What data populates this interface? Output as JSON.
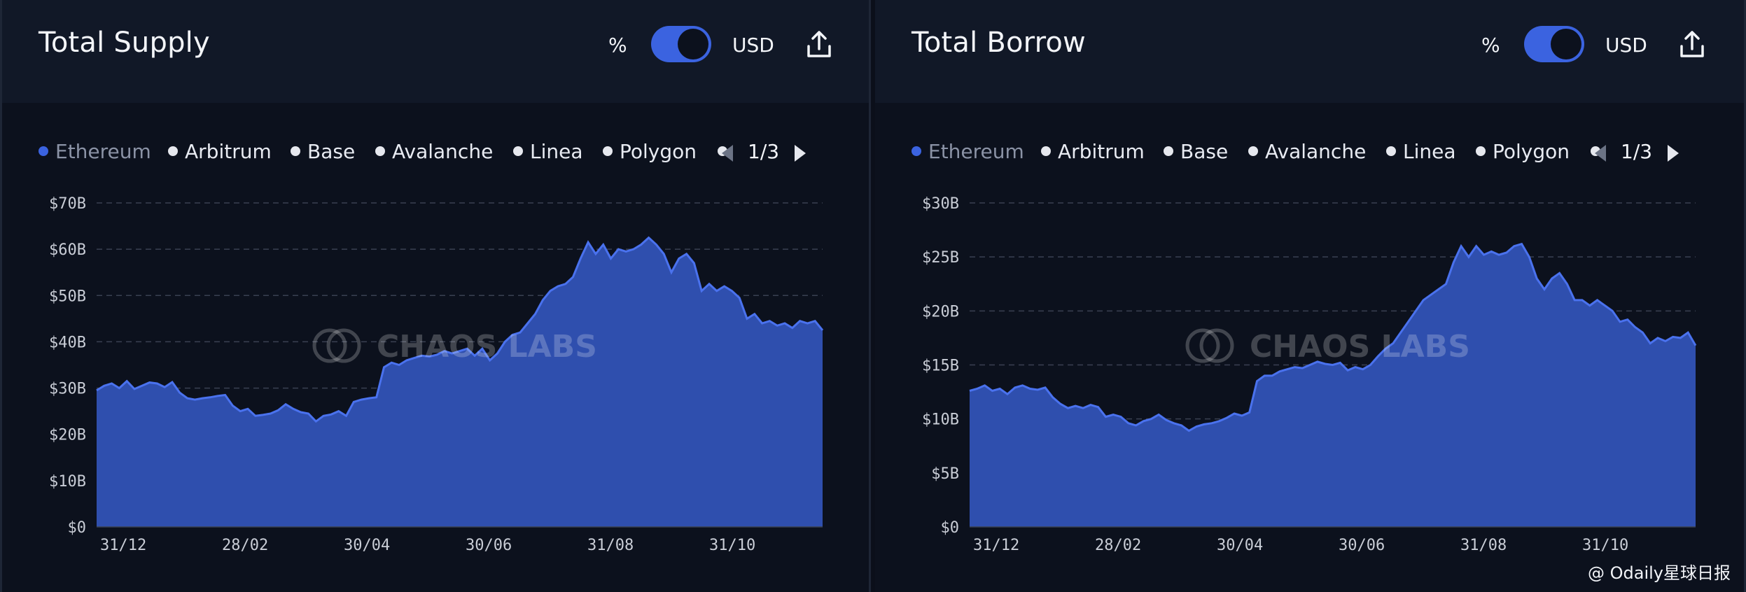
{
  "panels": [
    {
      "title": "Total Supply",
      "toggle": {
        "left_label": "%",
        "right_label": "USD",
        "selected": "USD"
      },
      "export_icon": "share-upload-icon",
      "legend": {
        "items": [
          "Ethereum",
          "Arbitrum",
          "Base",
          "Avalanche",
          "Linea",
          "Polygon"
        ],
        "active": "Ethereum",
        "page": "1/3"
      },
      "watermark": "CHAOS LABS"
    },
    {
      "title": "Total Borrow",
      "toggle": {
        "left_label": "%",
        "right_label": "USD",
        "selected": "USD"
      },
      "export_icon": "share-upload-icon",
      "legend": {
        "items": [
          "Ethereum",
          "Arbitrum",
          "Base",
          "Avalanche",
          "Linea",
          "Polygon"
        ],
        "active": "Ethereum",
        "page": "1/3"
      },
      "watermark": "CHAOS LABS"
    }
  ],
  "colors": {
    "accent": "#3b63e0",
    "area_fill": "#2f4fae",
    "area_line": "#4a72ee",
    "background": "#0c111d",
    "header": "#111827"
  },
  "footer": {
    "credit": "@ Odaily星球日报"
  },
  "chart_data": [
    {
      "type": "area",
      "series": [
        {
          "name": "Ethereum",
          "values": [
            29.5,
            30.5,
            31,
            30,
            31.5,
            29.8,
            30.5,
            31.2,
            31,
            30.2,
            31.3,
            29,
            27.8,
            27.5,
            27.8,
            28,
            28.3,
            28.5,
            26.2,
            25,
            25.5,
            24,
            24.2,
            24.5,
            25.2,
            26.5,
            25.5,
            24.8,
            24.5,
            22.8,
            24,
            24.3,
            25,
            24,
            27,
            27.5,
            27.8,
            28,
            34.5,
            35.5,
            35,
            36,
            36.5,
            37,
            36.8,
            37.2,
            38,
            37.5,
            38,
            38.5,
            37,
            38.5,
            36,
            37.5,
            40,
            41.5,
            42,
            44,
            46,
            49,
            51,
            52,
            52.5,
            54,
            58,
            61.5,
            59,
            61,
            58,
            60,
            59.5,
            60,
            61,
            62.5,
            61,
            59,
            55,
            58,
            59,
            57,
            51,
            52.5,
            51,
            52,
            51,
            49.5,
            45,
            46,
            44,
            44.5,
            43.5,
            44,
            43,
            44.5,
            44,
            44.5,
            42.5
          ]
        }
      ],
      "x_tick_labels": [
        "31/12",
        "28/02",
        "30/04",
        "30/06",
        "31/08",
        "31/10"
      ],
      "y_tick_labels": [
        "$0",
        "$10B",
        "$20B",
        "$30B",
        "$40B",
        "$50B",
        "$60B",
        "$70B"
      ],
      "ylim": [
        0,
        70
      ],
      "ylabel_units": "$B",
      "grid": true,
      "legend_position": "top"
    },
    {
      "type": "area",
      "series": [
        {
          "name": "Ethereum",
          "values": [
            12.6,
            12.8,
            13.1,
            12.6,
            12.8,
            12.3,
            12.9,
            13.1,
            12.8,
            12.7,
            12.9,
            12,
            11.4,
            11,
            11.2,
            11,
            11.3,
            11.1,
            10.2,
            10.4,
            10.2,
            9.6,
            9.4,
            9.8,
            10,
            10.4,
            9.9,
            9.6,
            9.4,
            8.9,
            9.3,
            9.5,
            9.6,
            9.8,
            10.1,
            10.5,
            10.3,
            10.6,
            13.5,
            14,
            14,
            14.4,
            14.6,
            14.8,
            14.7,
            15,
            15.3,
            15.1,
            15,
            15.2,
            14.5,
            14.8,
            14.6,
            15,
            15.8,
            16.5,
            17,
            18,
            19,
            20,
            21,
            21.5,
            22,
            22.5,
            24.5,
            26,
            25,
            26,
            25.2,
            25.5,
            25.2,
            25.4,
            26,
            26.2,
            25,
            23,
            22,
            23,
            23.5,
            22.5,
            21,
            21,
            20.5,
            21,
            20.5,
            20,
            19,
            19.2,
            18.5,
            18,
            17,
            17.5,
            17.2,
            17.6,
            17.5,
            18,
            16.8
          ]
        }
      ],
      "x_tick_labels": [
        "31/12",
        "28/02",
        "30/04",
        "30/06",
        "31/08",
        "31/10"
      ],
      "y_tick_labels": [
        "$0",
        "$5B",
        "$10B",
        "$15B",
        "$20B",
        "$25B",
        "$30B"
      ],
      "ylim": [
        0,
        30
      ],
      "ylabel_units": "$B",
      "grid": true,
      "legend_position": "top"
    }
  ]
}
